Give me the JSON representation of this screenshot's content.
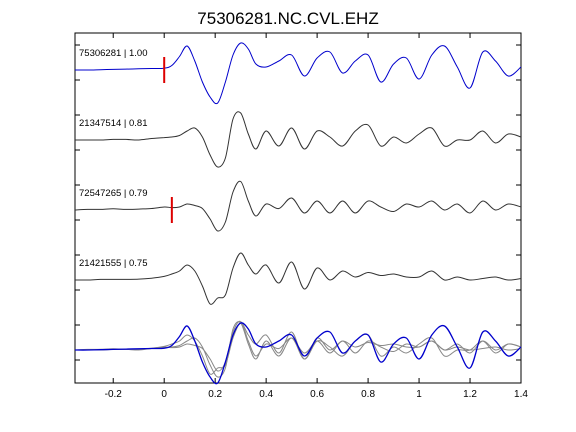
{
  "chart_data": {
    "type": "line",
    "title": "75306281.NC.CVL.EHZ",
    "xlabel": "",
    "ylabel": "",
    "xlim": [
      -0.35,
      1.4
    ],
    "x_ticks": [
      -0.2,
      0,
      0.2,
      0.4,
      0.6,
      0.8,
      1,
      1.2,
      1.4
    ],
    "x_tick_labels": [
      "-0.2",
      "0",
      "0.2",
      "0.4",
      "0.6",
      "0.8",
      "1",
      "1.2",
      "1.4"
    ],
    "grid": false,
    "colors": {
      "reference": "#0000cc",
      "trace": "#333333",
      "overlay": "#888888",
      "pick": "#dd0000"
    },
    "x": [
      -0.35,
      -0.3,
      -0.25,
      -0.2,
      -0.15,
      -0.1,
      -0.05,
      0,
      0.03,
      0.06,
      0.09,
      0.12,
      0.15,
      0.18,
      0.21,
      0.24,
      0.27,
      0.3,
      0.33,
      0.36,
      0.4,
      0.45,
      0.5,
      0.55,
      0.6,
      0.65,
      0.7,
      0.75,
      0.8,
      0.85,
      0.9,
      0.95,
      1,
      1.05,
      1.1,
      1.15,
      1.2,
      1.25,
      1.3,
      1.35,
      1.4
    ],
    "series": [
      {
        "name": "75306281 | 1.00",
        "role": "reference",
        "pick": 0,
        "values": [
          0,
          0,
          0.01,
          0.02,
          0.03,
          0.04,
          0.05,
          0.06,
          0.15,
          0.45,
          0.8,
          0.3,
          -0.4,
          -0.9,
          -1.1,
          -0.4,
          0.5,
          0.9,
          0.7,
          0.2,
          0.1,
          0.3,
          0.5,
          -0.2,
          0.4,
          0.6,
          -0.1,
          0.3,
          0.5,
          -0.4,
          0.2,
          0.4,
          -0.3,
          0.5,
          0.8,
          0.1,
          -0.6,
          0.6,
          0.3,
          -0.2,
          0.1
        ]
      },
      {
        "name": "21347514 | 0.81",
        "role": "trace",
        "values": [
          0,
          0,
          0,
          0.02,
          0.02,
          0,
          0.05,
          0.08,
          0.1,
          0.15,
          0.3,
          0.4,
          0.1,
          -0.5,
          -0.9,
          -0.6,
          0.7,
          0.9,
          0.2,
          -0.3,
          0.3,
          -0.2,
          0.4,
          -0.3,
          0.3,
          0.1,
          -0.2,
          0.3,
          0.5,
          -0.2,
          0.1,
          -0.1,
          0.2,
          0.4,
          -0.2,
          0,
          0,
          0.3,
          -0.1,
          0.2,
          0.1
        ]
      },
      {
        "name": "72547265 | 0.79",
        "role": "trace",
        "pick": 0.03,
        "values": [
          0,
          0.02,
          0.02,
          0.04,
          0.02,
          0.03,
          0.05,
          0.1,
          0.08,
          0.1,
          0.2,
          0.15,
          0.05,
          -0.3,
          -0.7,
          -0.4,
          0.6,
          0.95,
          0.3,
          -0.2,
          0.2,
          0.05,
          0.4,
          -0.1,
          0.3,
          -0.1,
          0.3,
          -0.1,
          0.3,
          0.1,
          -0.05,
          0.2,
          0.1,
          0.3,
          0,
          0.2,
          -0.1,
          0.3,
          0,
          0.2,
          0.1
        ]
      },
      {
        "name": "21421555 | 0.75",
        "role": "trace",
        "values": [
          0,
          0,
          0.02,
          0.02,
          0.02,
          0.03,
          0.06,
          0.12,
          0.2,
          0.3,
          0.5,
          0.3,
          -0.2,
          -0.8,
          -0.6,
          -0.5,
          0.4,
          0.9,
          0.5,
          0.2,
          0.5,
          -0.1,
          0.6,
          -0.3,
          0.4,
          0,
          0.3,
          0.1,
          0.25,
          0.15,
          0.2,
          0.1,
          0.1,
          0.3,
          0,
          0.1,
          0,
          0.05,
          0.1,
          0,
          0.05
        ]
      }
    ],
    "overlay": "all traces overlaid"
  }
}
